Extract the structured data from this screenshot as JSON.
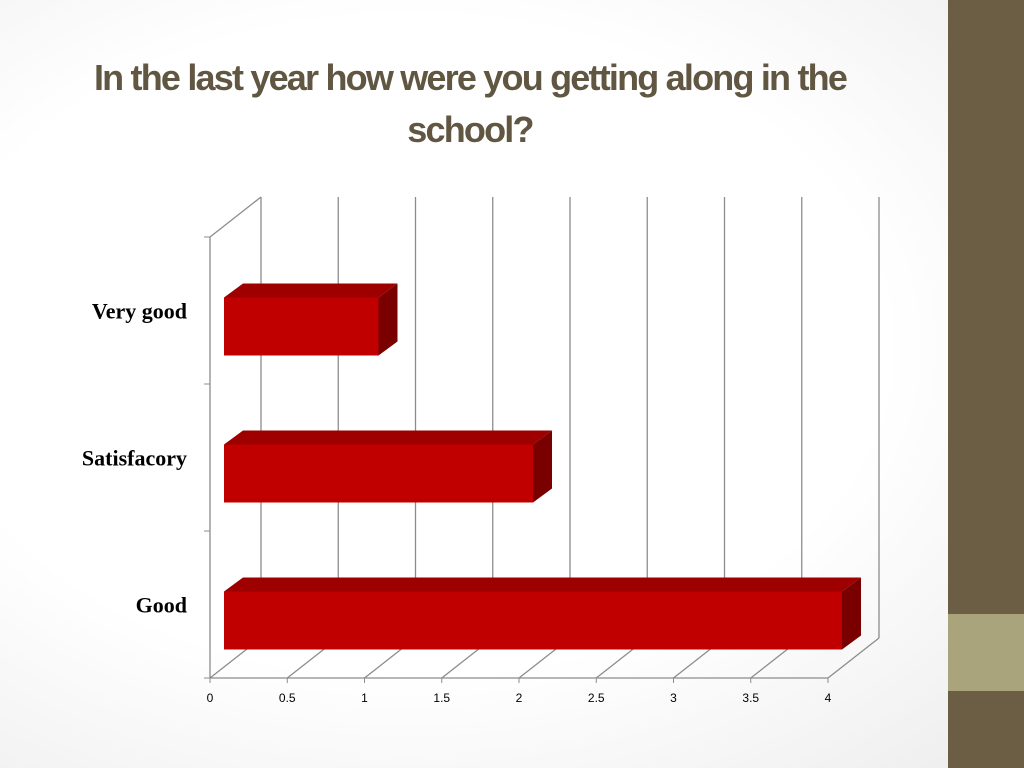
{
  "slide": {
    "title": "In the last year how were you getting along in the school?",
    "band_color": "#6b5e45",
    "accent_color": "#a9a47c"
  },
  "chart_data": {
    "type": "bar",
    "orientation": "horizontal",
    "style": "3d",
    "title": "",
    "categories": [
      "Very good",
      "Satisfacory",
      "Good"
    ],
    "values": [
      1,
      2,
      4
    ],
    "xlim": [
      0,
      4
    ],
    "xticks": [
      "0",
      "0.5",
      "1",
      "1.5",
      "2",
      "2.5",
      "3",
      "3.5",
      "4"
    ],
    "grid": true,
    "legend": "none",
    "bar_color": "#c00000"
  }
}
